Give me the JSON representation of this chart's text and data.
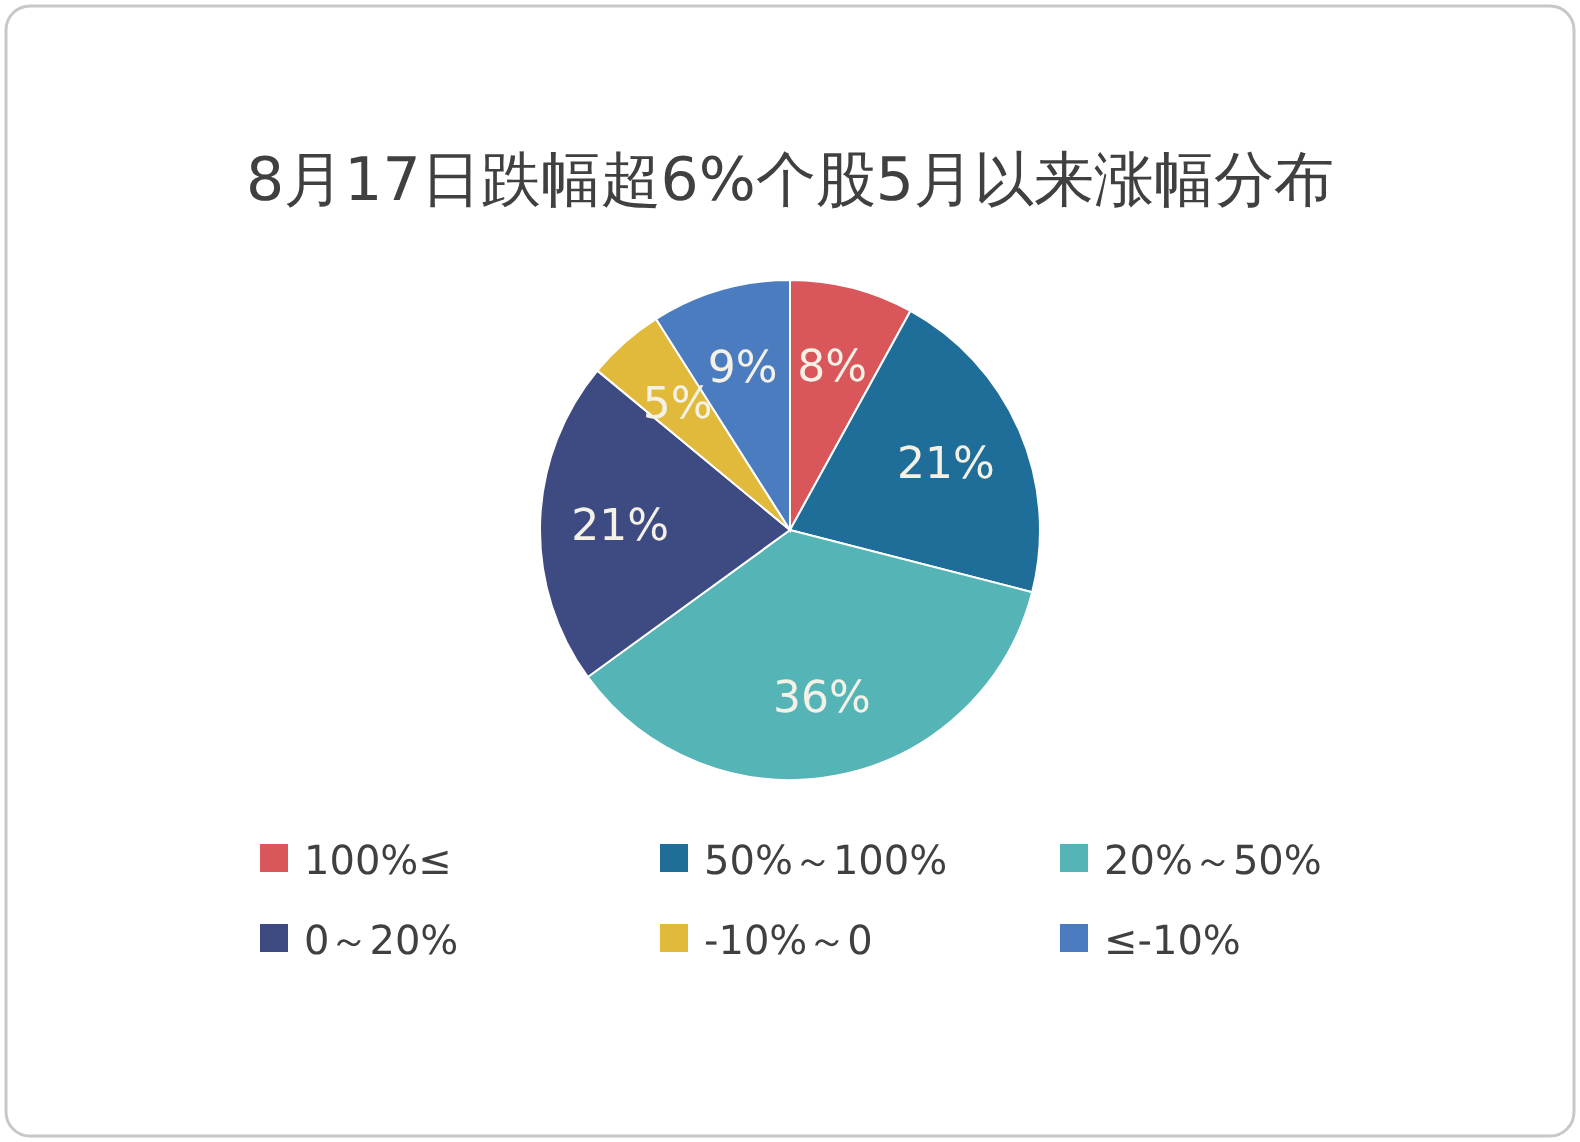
{
  "chart_data": {
    "type": "pie",
    "title": "8月17日跌幅超6%个股5月以来涨幅分布",
    "categories": [
      "100%≤",
      "50%～100%",
      "20%～50%",
      "0～20%",
      "-10%～0",
      "≤-10%"
    ],
    "values": [
      8,
      21,
      36,
      21,
      5,
      9
    ],
    "value_labels": [
      "8%",
      "21%",
      "36%",
      "21%",
      "5%",
      "9%"
    ],
    "colors": [
      "#d9575a",
      "#1f6e99",
      "#55b4b6",
      "#3e4a82",
      "#e1ba3c",
      "#4b7cc0"
    ],
    "legend": "bottom"
  }
}
